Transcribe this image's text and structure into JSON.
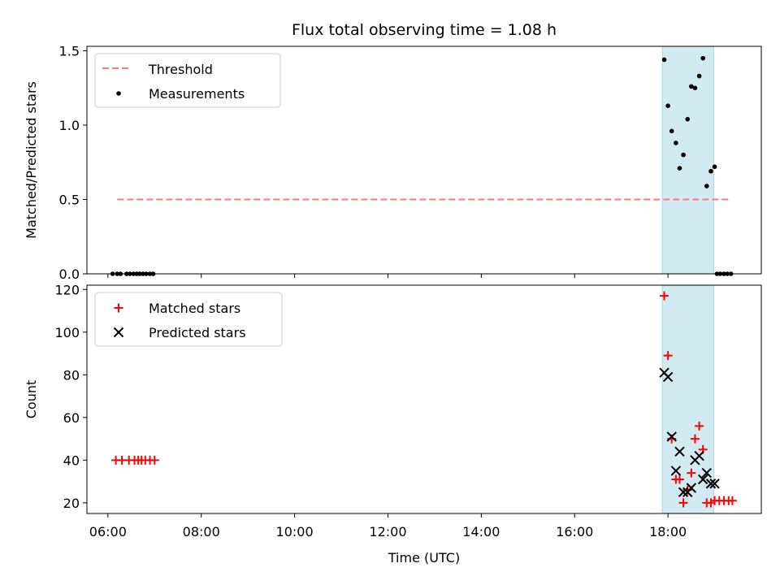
{
  "figure_title": "Flux total observing time = 1.08 h",
  "colors": {
    "threshold": "#f47c7c",
    "measurement": "#000000",
    "matched": "#ff0000",
    "predicted": "#000000",
    "observing_band": "#add8e6"
  },
  "chart_data": [
    {
      "type": "scatter",
      "panel": "top",
      "title": "Flux total observing time = 1.08 h",
      "xlabel": "",
      "ylabel": "Matched/Predicted stars",
      "xlim": [
        5.55,
        20.0
      ],
      "ylim": [
        0,
        1.53
      ],
      "yticks": [
        0.0,
        0.5,
        1.0,
        1.5
      ],
      "ytick_labels": [
        "0.0",
        "0.5",
        "1.0",
        "1.5"
      ],
      "shaded_span": [
        17.88,
        18.98
      ],
      "threshold": {
        "name": "Threshold",
        "y": 0.5,
        "x_range": [
          6.2,
          19.35
        ]
      },
      "legend_position": "top-left",
      "legend": [
        "Threshold",
        "Measurements"
      ],
      "series": [
        {
          "name": "Measurements",
          "marker": "dot",
          "points": [
            [
              6.1,
              0.0
            ],
            [
              6.2,
              0.0
            ],
            [
              6.27,
              0.0
            ],
            [
              6.4,
              0.0
            ],
            [
              6.47,
              0.0
            ],
            [
              6.55,
              0.0
            ],
            [
              6.62,
              0.0
            ],
            [
              6.68,
              0.0
            ],
            [
              6.75,
              0.0
            ],
            [
              6.82,
              0.0
            ],
            [
              6.9,
              0.0
            ],
            [
              6.97,
              0.0
            ],
            [
              17.92,
              1.44
            ],
            [
              18.0,
              1.13
            ],
            [
              18.08,
              0.96
            ],
            [
              18.17,
              0.88
            ],
            [
              18.25,
              0.71
            ],
            [
              18.33,
              0.8
            ],
            [
              18.42,
              1.04
            ],
            [
              18.5,
              1.26
            ],
            [
              18.58,
              1.25
            ],
            [
              18.67,
              1.33
            ],
            [
              18.75,
              1.45
            ],
            [
              18.83,
              0.59
            ],
            [
              18.92,
              0.69
            ],
            [
              19.0,
              0.72
            ],
            [
              19.05,
              0.0
            ],
            [
              19.12,
              0.0
            ],
            [
              19.2,
              0.0
            ],
            [
              19.27,
              0.0
            ],
            [
              19.35,
              0.0
            ]
          ]
        }
      ]
    },
    {
      "type": "scatter",
      "panel": "bottom",
      "title": "",
      "xlabel": "Time (UTC)",
      "ylabel": "Count",
      "xlim": [
        5.55,
        20.0
      ],
      "ylim": [
        15,
        122
      ],
      "xticks": [
        6,
        8,
        10,
        12,
        14,
        16,
        18
      ],
      "xtick_labels": [
        "06:00",
        "08:00",
        "10:00",
        "12:00",
        "14:00",
        "16:00",
        "18:00"
      ],
      "yticks": [
        20,
        40,
        60,
        80,
        100,
        120
      ],
      "ytick_labels": [
        "20",
        "40",
        "60",
        "80",
        "100",
        "120"
      ],
      "shaded_span": [
        17.88,
        18.98
      ],
      "legend_position": "top-left",
      "legend": [
        "Matched stars",
        "Predicted stars"
      ],
      "series": [
        {
          "name": "Matched stars",
          "marker": "plus",
          "points": [
            [
              6.17,
              40
            ],
            [
              6.3,
              40
            ],
            [
              6.45,
              40
            ],
            [
              6.57,
              40
            ],
            [
              6.65,
              40
            ],
            [
              6.72,
              40
            ],
            [
              6.8,
              40
            ],
            [
              6.9,
              40
            ],
            [
              7.0,
              40
            ],
            [
              17.92,
              117
            ],
            [
              18.0,
              89
            ],
            [
              18.08,
              50
            ],
            [
              18.17,
              31
            ],
            [
              18.25,
              31
            ],
            [
              18.33,
              20
            ],
            [
              18.42,
              26
            ],
            [
              18.5,
              34
            ],
            [
              18.58,
              50
            ],
            [
              18.67,
              56
            ],
            [
              18.75,
              45
            ],
            [
              18.83,
              20
            ],
            [
              18.92,
              20
            ],
            [
              19.0,
              21
            ],
            [
              19.1,
              21
            ],
            [
              19.2,
              21
            ],
            [
              19.3,
              21
            ],
            [
              19.38,
              21
            ]
          ]
        },
        {
          "name": "Predicted stars",
          "marker": "x",
          "points": [
            [
              17.92,
              81
            ],
            [
              18.0,
              79
            ],
            [
              18.08,
              51
            ],
            [
              18.17,
              35
            ],
            [
              18.25,
              44
            ],
            [
              18.33,
              25
            ],
            [
              18.42,
              25
            ],
            [
              18.5,
              27
            ],
            [
              18.58,
              40
            ],
            [
              18.67,
              42
            ],
            [
              18.75,
              31
            ],
            [
              18.83,
              34
            ],
            [
              18.92,
              29
            ],
            [
              19.0,
              29
            ]
          ]
        }
      ]
    }
  ]
}
